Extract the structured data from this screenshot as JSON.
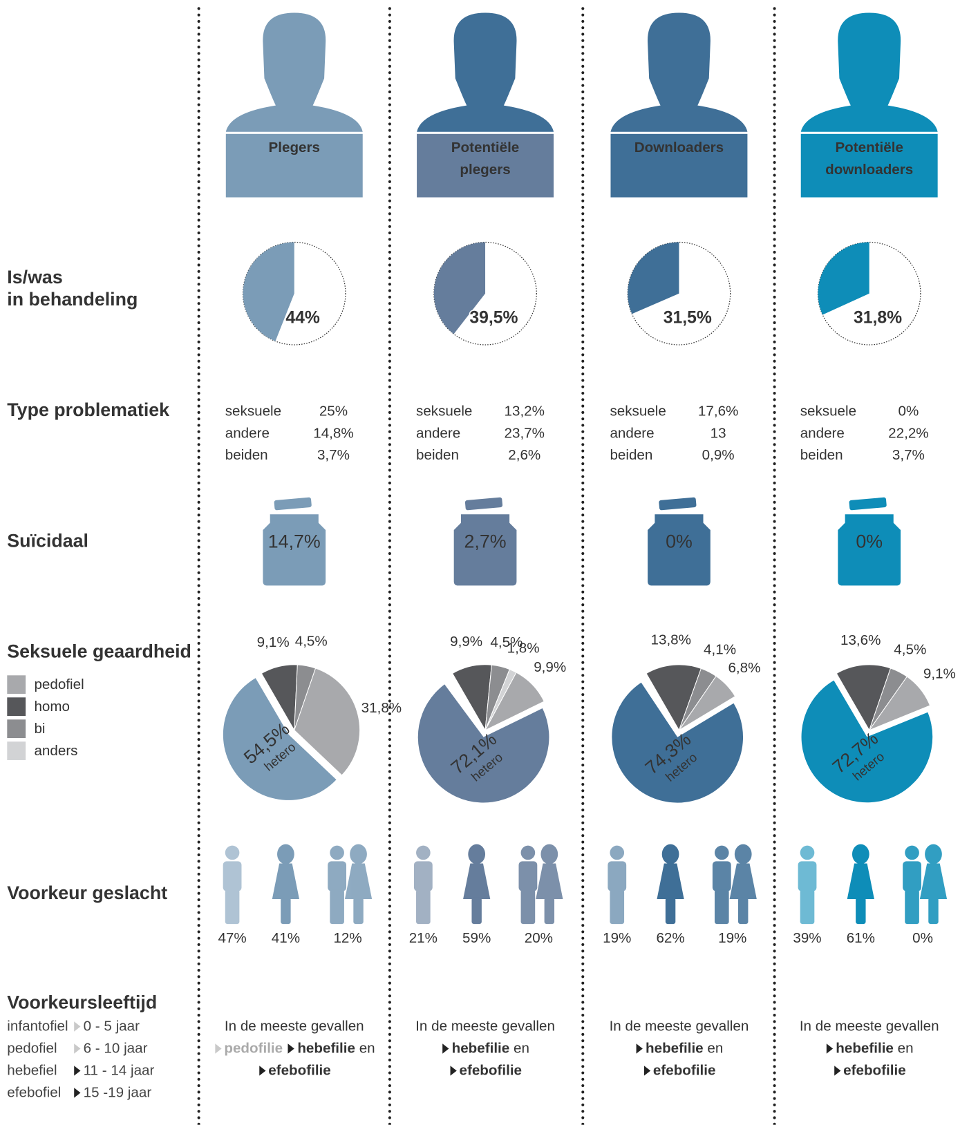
{
  "row_labels": {
    "treatment": [
      "Is/was",
      "in behandeling"
    ],
    "problems": [
      "Type problematiek"
    ],
    "suicidal": [
      "Suïcidaal"
    ],
    "orientation": [
      "Seksuele geaardheid"
    ],
    "gender": [
      "Voorkeur geslacht"
    ],
    "age": [
      "Voorkeursleeftijd"
    ]
  },
  "orientation_legend": [
    {
      "label": "pedofiel",
      "color": "#a8a9ac"
    },
    {
      "label": "homo",
      "color": "#56575a"
    },
    {
      "label": "bi",
      "color": "#8c8d90"
    },
    {
      "label": "anders",
      "color": "#d2d3d5"
    }
  ],
  "age_legend": [
    {
      "term": "infantofiel",
      "range": "0 - 5 jaar",
      "muted": true
    },
    {
      "term": "pedofiel",
      "range": "6 - 10 jaar",
      "muted": true
    },
    {
      "term": "hebefiel",
      "range": "11 - 14 jaar",
      "muted": false
    },
    {
      "term": "efebofiel",
      "range": "15 -19 jaar",
      "muted": false
    }
  ],
  "columns": [
    {
      "title": [
        "Plegers"
      ],
      "color": "#7b9cb7",
      "head_color": "#7b9cb7",
      "treatment": {
        "value": 44,
        "label": "44%"
      },
      "problems": [
        {
          "name": "seksuele",
          "value": "25%"
        },
        {
          "name": "andere",
          "value": "14,8%"
        },
        {
          "name": "beiden",
          "value": "3,7%"
        }
      ],
      "suicidal": "14,7%",
      "orientation": {
        "values": [
          31.8,
          9.1,
          4.5,
          null
        ],
        "value_labels": [
          "31,8%",
          "9,1%",
          "4,5%",
          null
        ],
        "hetero": {
          "value": 54.5,
          "label": "54,5%",
          "name": "hetero"
        }
      },
      "gender": {
        "values": [
          47,
          41,
          12
        ],
        "value_labels": [
          "47%",
          "41%",
          "12%"
        ]
      },
      "age": {
        "intro": "In de meeste gevallen",
        "items": [
          {
            "text": "pedofilie",
            "muted": true
          },
          {
            "text": "hebefilie",
            "muted": false
          }
        ],
        "connector": "en",
        "last": "efebofilie"
      }
    },
    {
      "title": [
        "Potentiële",
        "plegers"
      ],
      "color": "#657d9c",
      "head_color": "#3f6f97",
      "treatment": {
        "value": 39.5,
        "label": "39,5%"
      },
      "problems": [
        {
          "name": "seksuele",
          "value": "13,2%"
        },
        {
          "name": "andere",
          "value": "23,7%"
        },
        {
          "name": "beiden",
          "value": "2,6%"
        }
      ],
      "suicidal": "2,7%",
      "orientation": {
        "values": [
          9.9,
          9.9,
          4.5,
          1.8
        ],
        "value_labels": [
          "9,9%",
          "9,9%",
          "4,5%",
          "1,8%"
        ],
        "hetero": {
          "value": 72.1,
          "label": "72,1%",
          "name": "hetero"
        }
      },
      "gender": {
        "values": [
          21,
          59,
          20
        ],
        "value_labels": [
          "21%",
          "59%",
          "20%"
        ]
      },
      "age": {
        "intro": "In de meeste gevallen",
        "items": [
          {
            "text": "hebefilie",
            "muted": false
          }
        ],
        "connector": "en",
        "last": "efebofilie"
      }
    },
    {
      "title": [
        "Downloaders"
      ],
      "color": "#3f6f97",
      "head_color": "#3f6f97",
      "treatment": {
        "value": 31.5,
        "label": "31,5%"
      },
      "problems": [
        {
          "name": "seksuele",
          "value": "17,6%"
        },
        {
          "name": "andere",
          "value": "13"
        },
        {
          "name": "beiden",
          "value": "0,9%"
        }
      ],
      "suicidal": "0%",
      "orientation": {
        "values": [
          6.8,
          13.8,
          4.1,
          null
        ],
        "value_labels": [
          "6,8%",
          "13,8%",
          "4,1%",
          null
        ],
        "hetero": {
          "value": 74.3,
          "label": "74,3%",
          "name": "hetero"
        }
      },
      "gender": {
        "values": [
          19,
          62,
          19
        ],
        "value_labels": [
          "19%",
          "62%",
          "19%"
        ]
      },
      "age": {
        "intro": "In de meeste gevallen",
        "items": [
          {
            "text": "hebefilie",
            "muted": false
          }
        ],
        "connector": "en",
        "last": "efebofilie"
      }
    },
    {
      "title": [
        "Potentiële",
        "downloaders"
      ],
      "color": "#0e8db8",
      "head_color": "#0e8db8",
      "treatment": {
        "value": 31.8,
        "label": "31,8%"
      },
      "problems": [
        {
          "name": "seksuele",
          "value": "0%"
        },
        {
          "name": "andere",
          "value": "22,2%"
        },
        {
          "name": "beiden",
          "value": "3,7%"
        }
      ],
      "suicidal": "0%",
      "orientation": {
        "values": [
          9.1,
          13.6,
          4.5,
          null
        ],
        "value_labels": [
          "9,1%",
          "13,6%",
          "4,5%",
          null
        ],
        "hetero": {
          "value": 72.7,
          "label": "72,7%",
          "name": "hetero"
        }
      },
      "gender": {
        "values": [
          39,
          61,
          0
        ],
        "value_labels": [
          "39%",
          "61%",
          "0%"
        ]
      },
      "age": {
        "intro": "In de meeste gevallen",
        "items": [
          {
            "text": "hebefilie",
            "muted": false
          }
        ],
        "connector": "en",
        "last": "efebofilie"
      }
    }
  ]
}
